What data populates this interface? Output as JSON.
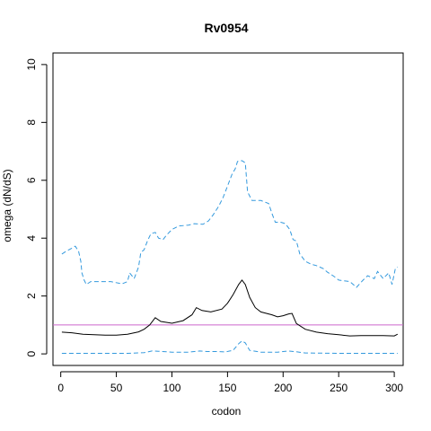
{
  "chart_data": {
    "type": "line",
    "title": "Rv0954",
    "xlabel": "codon",
    "ylabel": "omega (dN/dS)",
    "xlim": [
      -7,
      308
    ],
    "ylim": [
      -0.4,
      10.4
    ],
    "xticks": [
      0,
      50,
      100,
      150,
      200,
      250,
      300
    ],
    "yticks": [
      0,
      2,
      4,
      6,
      8,
      10
    ],
    "grid": false,
    "legend": "none",
    "reference_line": {
      "y": 1,
      "color": "#cc66cc"
    },
    "series": [
      {
        "style": "solid",
        "color": "#000000",
        "points": [
          [
            1,
            0.75
          ],
          [
            10,
            0.73
          ],
          [
            20,
            0.68
          ],
          [
            30,
            0.66
          ],
          [
            40,
            0.65
          ],
          [
            50,
            0.65
          ],
          [
            60,
            0.68
          ],
          [
            70,
            0.76
          ],
          [
            75,
            0.85
          ],
          [
            80,
            1.0
          ],
          [
            85,
            1.25
          ],
          [
            90,
            1.12
          ],
          [
            100,
            1.06
          ],
          [
            110,
            1.15
          ],
          [
            118,
            1.35
          ],
          [
            122,
            1.6
          ],
          [
            127,
            1.5
          ],
          [
            135,
            1.45
          ],
          [
            145,
            1.55
          ],
          [
            150,
            1.75
          ],
          [
            155,
            2.05
          ],
          [
            160,
            2.4
          ],
          [
            163,
            2.55
          ],
          [
            166,
            2.4
          ],
          [
            170,
            1.95
          ],
          [
            175,
            1.6
          ],
          [
            180,
            1.45
          ],
          [
            190,
            1.35
          ],
          [
            195,
            1.28
          ],
          [
            200,
            1.32
          ],
          [
            205,
            1.38
          ],
          [
            208,
            1.4
          ],
          [
            212,
            1.05
          ],
          [
            220,
            0.85
          ],
          [
            230,
            0.75
          ],
          [
            240,
            0.7
          ],
          [
            250,
            0.66
          ],
          [
            260,
            0.62
          ],
          [
            270,
            0.63
          ],
          [
            280,
            0.63
          ],
          [
            290,
            0.63
          ],
          [
            300,
            0.62
          ],
          [
            303,
            0.68
          ]
        ]
      },
      {
        "style": "dashed",
        "color": "#3399dd",
        "points": [
          [
            1,
            3.45
          ],
          [
            5,
            3.55
          ],
          [
            10,
            3.65
          ],
          [
            13,
            3.72
          ],
          [
            16,
            3.55
          ],
          [
            18,
            3.2
          ],
          [
            19,
            2.8
          ],
          [
            21,
            2.55
          ],
          [
            23,
            2.4
          ],
          [
            27,
            2.5
          ],
          [
            35,
            2.5
          ],
          [
            45,
            2.5
          ],
          [
            55,
            2.42
          ],
          [
            60,
            2.5
          ],
          [
            62,
            2.8
          ],
          [
            66,
            2.6
          ],
          [
            70,
            3.0
          ],
          [
            72,
            3.5
          ],
          [
            75,
            3.6
          ],
          [
            78,
            3.9
          ],
          [
            81,
            4.15
          ],
          [
            85,
            4.2
          ],
          [
            88,
            4.0
          ],
          [
            92,
            3.95
          ],
          [
            95,
            4.1
          ],
          [
            100,
            4.3
          ],
          [
            106,
            4.42
          ],
          [
            115,
            4.45
          ],
          [
            120,
            4.5
          ],
          [
            128,
            4.48
          ],
          [
            133,
            4.6
          ],
          [
            137,
            4.8
          ],
          [
            142,
            5.1
          ],
          [
            146,
            5.4
          ],
          [
            148,
            5.6
          ],
          [
            151,
            5.9
          ],
          [
            154,
            6.2
          ],
          [
            157,
            6.4
          ],
          [
            159,
            6.65
          ],
          [
            163,
            6.68
          ],
          [
            166,
            6.6
          ],
          [
            168,
            5.6
          ],
          [
            172,
            5.3
          ],
          [
            180,
            5.3
          ],
          [
            187,
            5.2
          ],
          [
            190,
            4.85
          ],
          [
            193,
            4.55
          ],
          [
            198,
            4.55
          ],
          [
            202,
            4.5
          ],
          [
            206,
            4.3
          ],
          [
            209,
            3.95
          ],
          [
            212,
            3.9
          ],
          [
            215,
            3.45
          ],
          [
            220,
            3.2
          ],
          [
            225,
            3.1
          ],
          [
            230,
            3.05
          ],
          [
            236,
            2.95
          ],
          [
            240,
            2.82
          ],
          [
            245,
            2.7
          ],
          [
            250,
            2.55
          ],
          [
            260,
            2.5
          ],
          [
            266,
            2.3
          ],
          [
            272,
            2.55
          ],
          [
            276,
            2.7
          ],
          [
            282,
            2.6
          ],
          [
            285,
            2.85
          ],
          [
            290,
            2.6
          ],
          [
            295,
            2.8
          ],
          [
            298,
            2.4
          ],
          [
            301,
            2.95
          ],
          [
            303,
            3.0
          ]
        ]
      },
      {
        "style": "dashed",
        "color": "#3399dd",
        "points": [
          [
            1,
            0.02
          ],
          [
            20,
            0.02
          ],
          [
            40,
            0.02
          ],
          [
            60,
            0.02
          ],
          [
            75,
            0.04
          ],
          [
            82,
            0.1
          ],
          [
            88,
            0.09
          ],
          [
            100,
            0.06
          ],
          [
            115,
            0.06
          ],
          [
            125,
            0.1
          ],
          [
            132,
            0.08
          ],
          [
            140,
            0.08
          ],
          [
            148,
            0.07
          ],
          [
            155,
            0.12
          ],
          [
            160,
            0.35
          ],
          [
            163,
            0.45
          ],
          [
            166,
            0.38
          ],
          [
            170,
            0.12
          ],
          [
            180,
            0.06
          ],
          [
            195,
            0.06
          ],
          [
            205,
            0.1
          ],
          [
            210,
            0.08
          ],
          [
            220,
            0.03
          ],
          [
            250,
            0.02
          ],
          [
            280,
            0.02
          ],
          [
            303,
            0.02
          ]
        ]
      }
    ]
  }
}
